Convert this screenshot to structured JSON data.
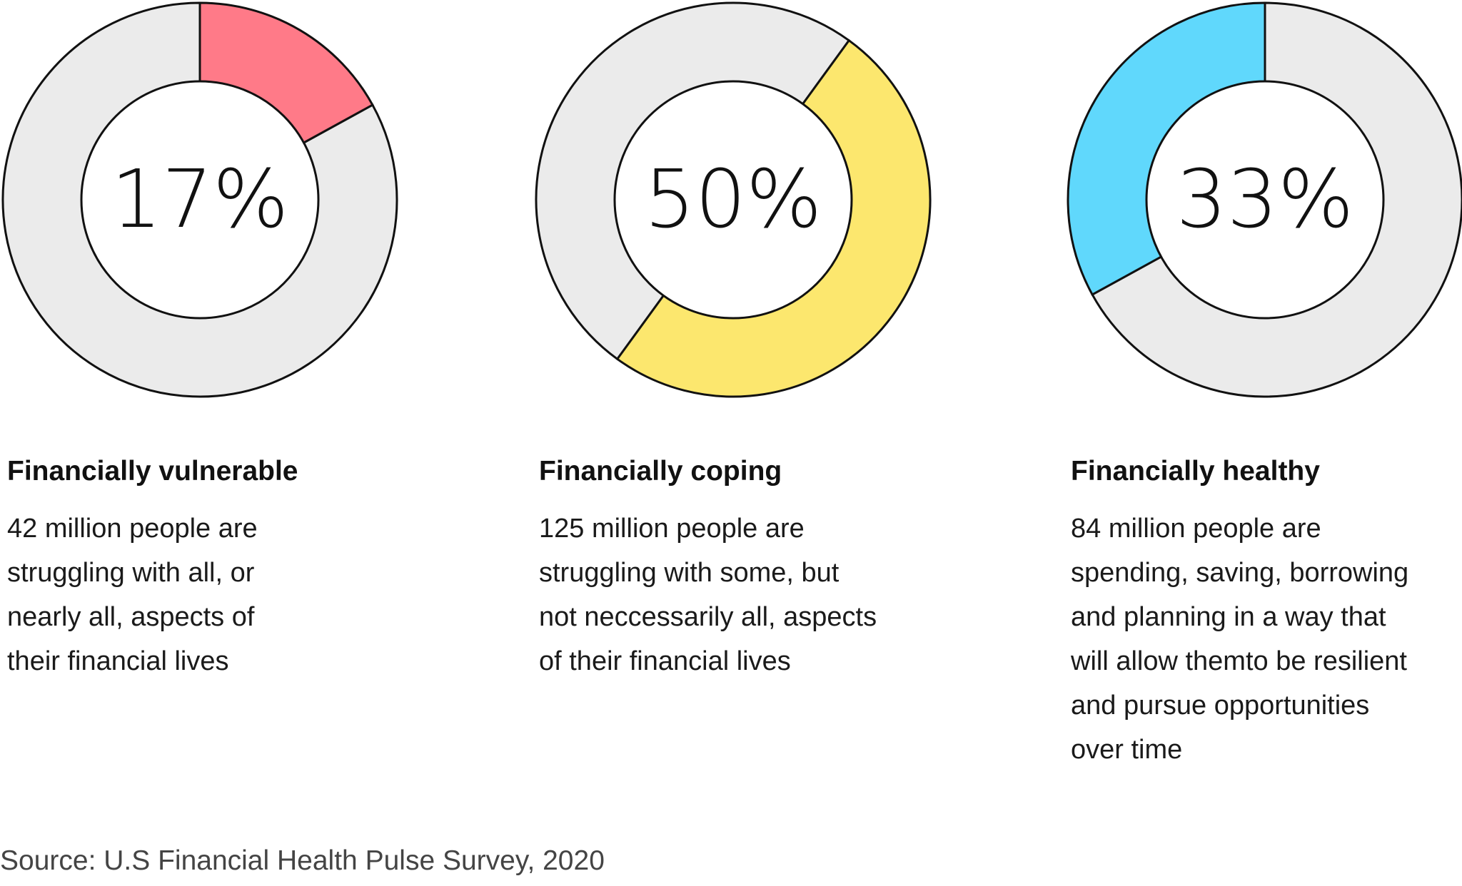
{
  "chart_data": [
    {
      "type": "pie",
      "variant": "donut",
      "value": 17,
      "center_label": "17%",
      "title": "Financially vulnerable",
      "description": "42 million people are struggling with all, or nearly all, aspects of their financial lives",
      "description_lines": [
        "42 million people are",
        "struggling with all, or",
        "nearly all, aspects of",
        "their financial lives"
      ],
      "color": "#FF7A88",
      "remainder_color": "#EBEBEB"
    },
    {
      "type": "pie",
      "variant": "donut",
      "value": 50,
      "center_label": "50%",
      "title": "Financially coping",
      "description": "125 million people are struggling with some, but not neccessarily all, aspects of their financial lives",
      "description_lines": [
        "125 million people are",
        "struggling with some, but",
        "not neccessarily all, aspects",
        "of their financial lives"
      ],
      "color": "#FCE76E",
      "remainder_color": "#EBEBEB"
    },
    {
      "type": "pie",
      "variant": "donut",
      "value": 33,
      "center_label": "33%",
      "title": "Financially healthy",
      "description": "84 million people are spending, saving, borrowing and planning in a way that will allow themto be resilient and pursue opportunities over time",
      "description_lines": [
        "84 million people are",
        "spending, saving, borrowing",
        "and planning in a way that",
        "will allow themto be resilient",
        "and pursue opportunities",
        "over time"
      ],
      "color": "#60D8FC",
      "remainder_color": "#EBEBEB"
    }
  ],
  "source": "Source: U.S Financial Health Pulse Survey, 2020"
}
